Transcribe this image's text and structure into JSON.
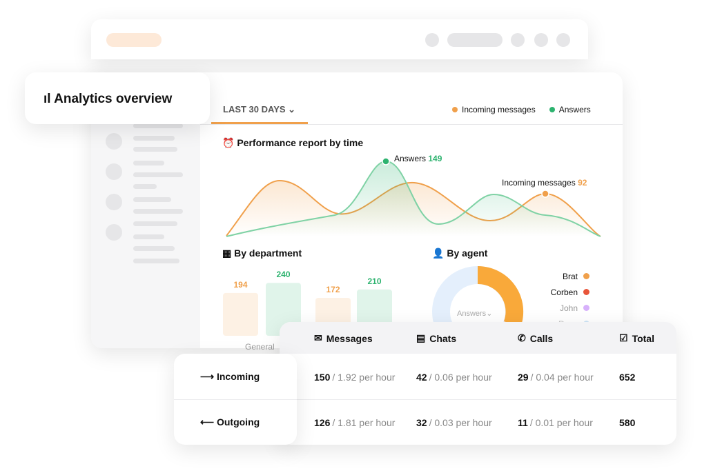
{
  "header": {
    "title": "Analytics overview"
  },
  "filter": {
    "period": "LAST 30 DAYS"
  },
  "legend": [
    {
      "name": "Incoming messages",
      "color": "#f0a04b"
    },
    {
      "name": "Answers",
      "color": "#2db36f"
    }
  ],
  "performance": {
    "title": "Performance report by time",
    "annotations": [
      {
        "label": "Answers",
        "value": 149,
        "color": "#2db36f"
      },
      {
        "label": "Incoming messages",
        "value": 92,
        "color": "#f0a04b"
      }
    ]
  },
  "department": {
    "title": "By department",
    "bars": [
      {
        "value": 194,
        "color": "#f0a04b"
      },
      {
        "value": 240,
        "color": "#2db36f"
      },
      {
        "value": 172,
        "color": "#f0a04b"
      },
      {
        "value": 210,
        "color": "#2db36f"
      }
    ],
    "categories": [
      "General"
    ]
  },
  "agent": {
    "title": "By agent",
    "metric": "Answers",
    "agents": [
      {
        "name": "Brat",
        "color": "#f0a04b"
      },
      {
        "name": "Corben",
        "color": "#e8553a"
      },
      {
        "name": "John",
        "color": "#a855f7"
      },
      {
        "name": "Ryan",
        "color": "#3b9ae1"
      }
    ]
  },
  "table": {
    "columns": [
      "Messages",
      "Chats",
      "Calls",
      "Total"
    ],
    "rows": [
      {
        "label": "Incoming",
        "cells": [
          {
            "count": 150,
            "rate": "/ 1.92 per hour"
          },
          {
            "count": 42,
            "rate": "/ 0.06 per hour"
          },
          {
            "count": 29,
            "rate": "/ 0.04 per hour"
          }
        ],
        "total": 652
      },
      {
        "label": "Outgoing",
        "cells": [
          {
            "count": 126,
            "rate": "/ 1.81 per hour"
          },
          {
            "count": 32,
            "rate": "/ 0.03 per hour"
          },
          {
            "count": 11,
            "rate": "/ 0.01 per hour"
          }
        ],
        "total": 580
      }
    ]
  }
}
